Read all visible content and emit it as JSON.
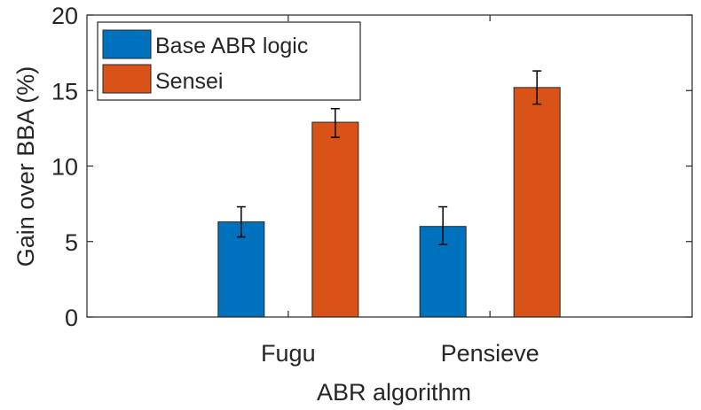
{
  "chart_data": {
    "type": "bar",
    "categories": [
      "Fugu",
      "Pensieve"
    ],
    "series": [
      {
        "name": "Base ABR logic",
        "values": [
          6.3,
          6.0
        ],
        "error_low": [
          5.3,
          4.8
        ],
        "error_high": [
          7.3,
          7.3
        ]
      },
      {
        "name": "Sensei",
        "values": [
          12.9,
          15.2
        ],
        "error_low": [
          11.9,
          14.1
        ],
        "error_high": [
          13.8,
          16.3
        ]
      }
    ],
    "title": "",
    "xlabel": "ABR algorithm",
    "ylabel": "Gain over BBA (%)",
    "ylim": [
      0,
      20
    ],
    "yticks": [
      "0",
      "5",
      "10",
      "15",
      "20"
    ],
    "grid": false,
    "legend_position": "top-left",
    "colors": [
      "#0072BD",
      "#D95319"
    ]
  }
}
